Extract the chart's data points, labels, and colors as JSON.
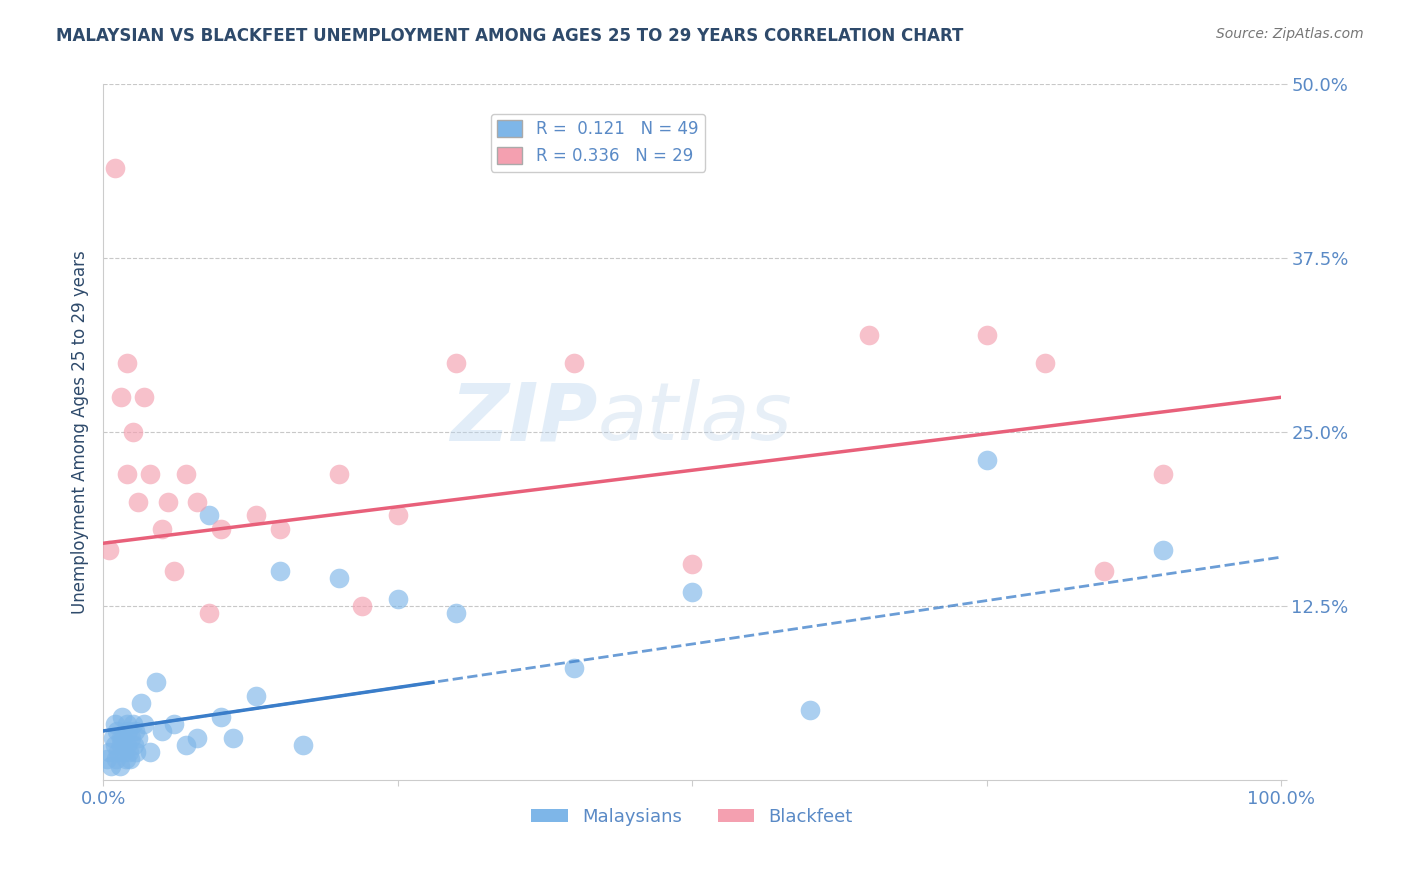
{
  "title": "MALAYSIAN VS BLACKFEET UNEMPLOYMENT AMONG AGES 25 TO 29 YEARS CORRELATION CHART",
  "source": "Source: ZipAtlas.com",
  "ylabel": "Unemployment Among Ages 25 to 29 years",
  "xlim": [
    0,
    100
  ],
  "ylim": [
    0,
    50
  ],
  "yticks": [
    0,
    12.5,
    25.0,
    37.5,
    50.0
  ],
  "xticks": [
    0,
    25,
    50,
    75,
    100
  ],
  "xtick_labels": [
    "0.0%",
    "",
    "",
    "",
    "100.0%"
  ],
  "ytick_labels": [
    "",
    "12.5%",
    "25.0%",
    "37.5%",
    "50.0%"
  ],
  "legend_r1": "R =  0.121",
  "legend_n1": "N = 49",
  "legend_r2": "R = 0.336",
  "legend_n2": "N = 29",
  "malaysian_color": "#7EB6E8",
  "blackfeet_color": "#F4A0B0",
  "trend_malaysian_color": "#3A7DC9",
  "trend_blackfeet_color": "#E8607A",
  "watermark_zip": "ZIP",
  "watermark_atlas": "atlas",
  "background_color": "#ffffff",
  "grid_color": "#c8c8c8",
  "title_color": "#2E4A6B",
  "axis_label_color": "#2E4A6B",
  "tick_color": "#5A8AC6",
  "malaysians_x": [
    0.3,
    0.5,
    0.7,
    0.8,
    1.0,
    1.0,
    1.1,
    1.2,
    1.3,
    1.4,
    1.5,
    1.5,
    1.6,
    1.7,
    1.8,
    1.9,
    2.0,
    2.0,
    2.1,
    2.2,
    2.3,
    2.4,
    2.5,
    2.6,
    2.7,
    2.8,
    3.0,
    3.2,
    3.5,
    4.0,
    4.5,
    5.0,
    6.0,
    7.0,
    8.0,
    9.0,
    10.0,
    11.0,
    13.0,
    15.0,
    17.0,
    20.0,
    25.0,
    30.0,
    40.0,
    50.0,
    60.0,
    75.0,
    90.0
  ],
  "malaysians_y": [
    1.5,
    2.0,
    1.0,
    3.0,
    2.5,
    4.0,
    1.5,
    3.5,
    2.0,
    1.0,
    3.0,
    2.5,
    4.5,
    3.0,
    2.0,
    1.5,
    4.0,
    2.5,
    3.5,
    2.0,
    1.5,
    3.0,
    4.0,
    2.5,
    3.5,
    2.0,
    3.0,
    5.5,
    4.0,
    2.0,
    7.0,
    3.5,
    4.0,
    2.5,
    3.0,
    19.0,
    4.5,
    3.0,
    6.0,
    15.0,
    2.5,
    14.5,
    13.0,
    12.0,
    8.0,
    13.5,
    5.0,
    23.0,
    16.5
  ],
  "blackfeet_x": [
    0.5,
    1.0,
    1.5,
    2.0,
    2.0,
    2.5,
    3.0,
    3.5,
    4.0,
    5.0,
    5.5,
    6.0,
    7.0,
    8.0,
    9.0,
    10.0,
    13.0,
    15.0,
    20.0,
    22.0,
    25.0,
    30.0,
    40.0,
    50.0,
    65.0,
    75.0,
    80.0,
    85.0,
    90.0
  ],
  "blackfeet_y": [
    16.5,
    44.0,
    27.5,
    22.0,
    30.0,
    25.0,
    20.0,
    27.5,
    22.0,
    18.0,
    20.0,
    15.0,
    22.0,
    20.0,
    12.0,
    18.0,
    19.0,
    18.0,
    22.0,
    12.5,
    19.0,
    30.0,
    30.0,
    15.5,
    32.0,
    32.0,
    30.0,
    15.0,
    22.0
  ],
  "malaysian_trend_x0": 0,
  "malaysian_trend_x1": 100,
  "malaysian_trend_y0": 3.5,
  "malaysian_trend_y1": 16.0,
  "malaysian_solid_x_end": 28,
  "blackfeet_trend_x0": 0,
  "blackfeet_trend_x1": 100,
  "blackfeet_trend_y0": 17.0,
  "blackfeet_trend_y1": 27.5
}
